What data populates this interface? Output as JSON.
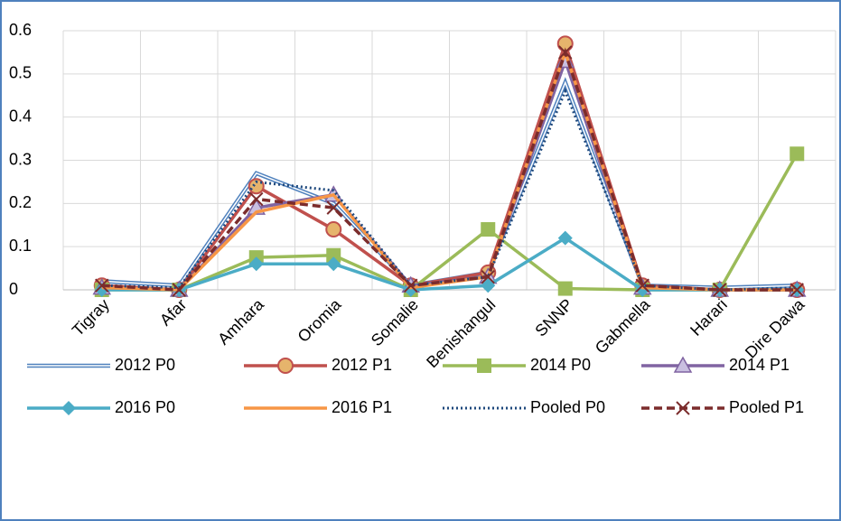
{
  "chart_data": {
    "type": "line",
    "categories": [
      "Tigray",
      "Afar",
      "Amhara",
      "Oromia",
      "Somalie",
      "Benishangul",
      "SNNP",
      "Gabmella",
      "Harari",
      "Dire Dawa"
    ],
    "ylim": [
      0,
      0.6
    ],
    "yticks": [
      0,
      0.1,
      0.2,
      0.3,
      0.4,
      0.5,
      0.6
    ],
    "grid": true,
    "series": [
      {
        "name": "2012 P0",
        "color": "#4f81bd",
        "line_style": "double",
        "marker": "none",
        "values": [
          0.02,
          0.01,
          0.27,
          0.2,
          0.01,
          0.04,
          0.48,
          0.01,
          0.005,
          0.01
        ]
      },
      {
        "name": "2012 P1",
        "color": "#c0504d",
        "line_style": "solid",
        "marker": "circle",
        "values": [
          0.01,
          0,
          0.24,
          0.14,
          0.01,
          0.04,
          0.57,
          0.01,
          0,
          0
        ]
      },
      {
        "name": "2014 P0",
        "color": "#9bbb59",
        "line_style": "solid",
        "marker": "square",
        "values": [
          0,
          0,
          0.075,
          0.08,
          0,
          0.14,
          0.003,
          0,
          0,
          0.315
        ]
      },
      {
        "name": "2014 P1",
        "color": "#8064a2",
        "line_style": "solid",
        "marker": "triangle",
        "values": [
          0.005,
          0,
          0.19,
          0.22,
          0.01,
          0.03,
          0.53,
          0.005,
          0,
          0
        ]
      },
      {
        "name": "2016 P0",
        "color": "#4bacc6",
        "line_style": "solid",
        "marker": "diamond",
        "values": [
          0,
          0,
          0.06,
          0.06,
          0,
          0.01,
          0.12,
          0,
          0,
          0
        ]
      },
      {
        "name": "2016 P1",
        "color": "#f79646",
        "line_style": "solid",
        "marker": "none",
        "values": [
          0.005,
          0,
          0.18,
          0.22,
          0.005,
          0.03,
          0.55,
          0.005,
          0,
          0
        ]
      },
      {
        "name": "Pooled P0",
        "color": "#1f497d",
        "line_style": "dot",
        "marker": "none",
        "values": [
          0.01,
          0.005,
          0.25,
          0.23,
          0.01,
          0.03,
          0.46,
          0.01,
          0,
          0.005
        ]
      },
      {
        "name": "Pooled P1",
        "color": "#7b2c2c",
        "line_style": "dash",
        "marker": "x",
        "values": [
          0.01,
          0,
          0.21,
          0.19,
          0.01,
          0.03,
          0.55,
          0.01,
          0,
          0
        ]
      }
    ]
  }
}
